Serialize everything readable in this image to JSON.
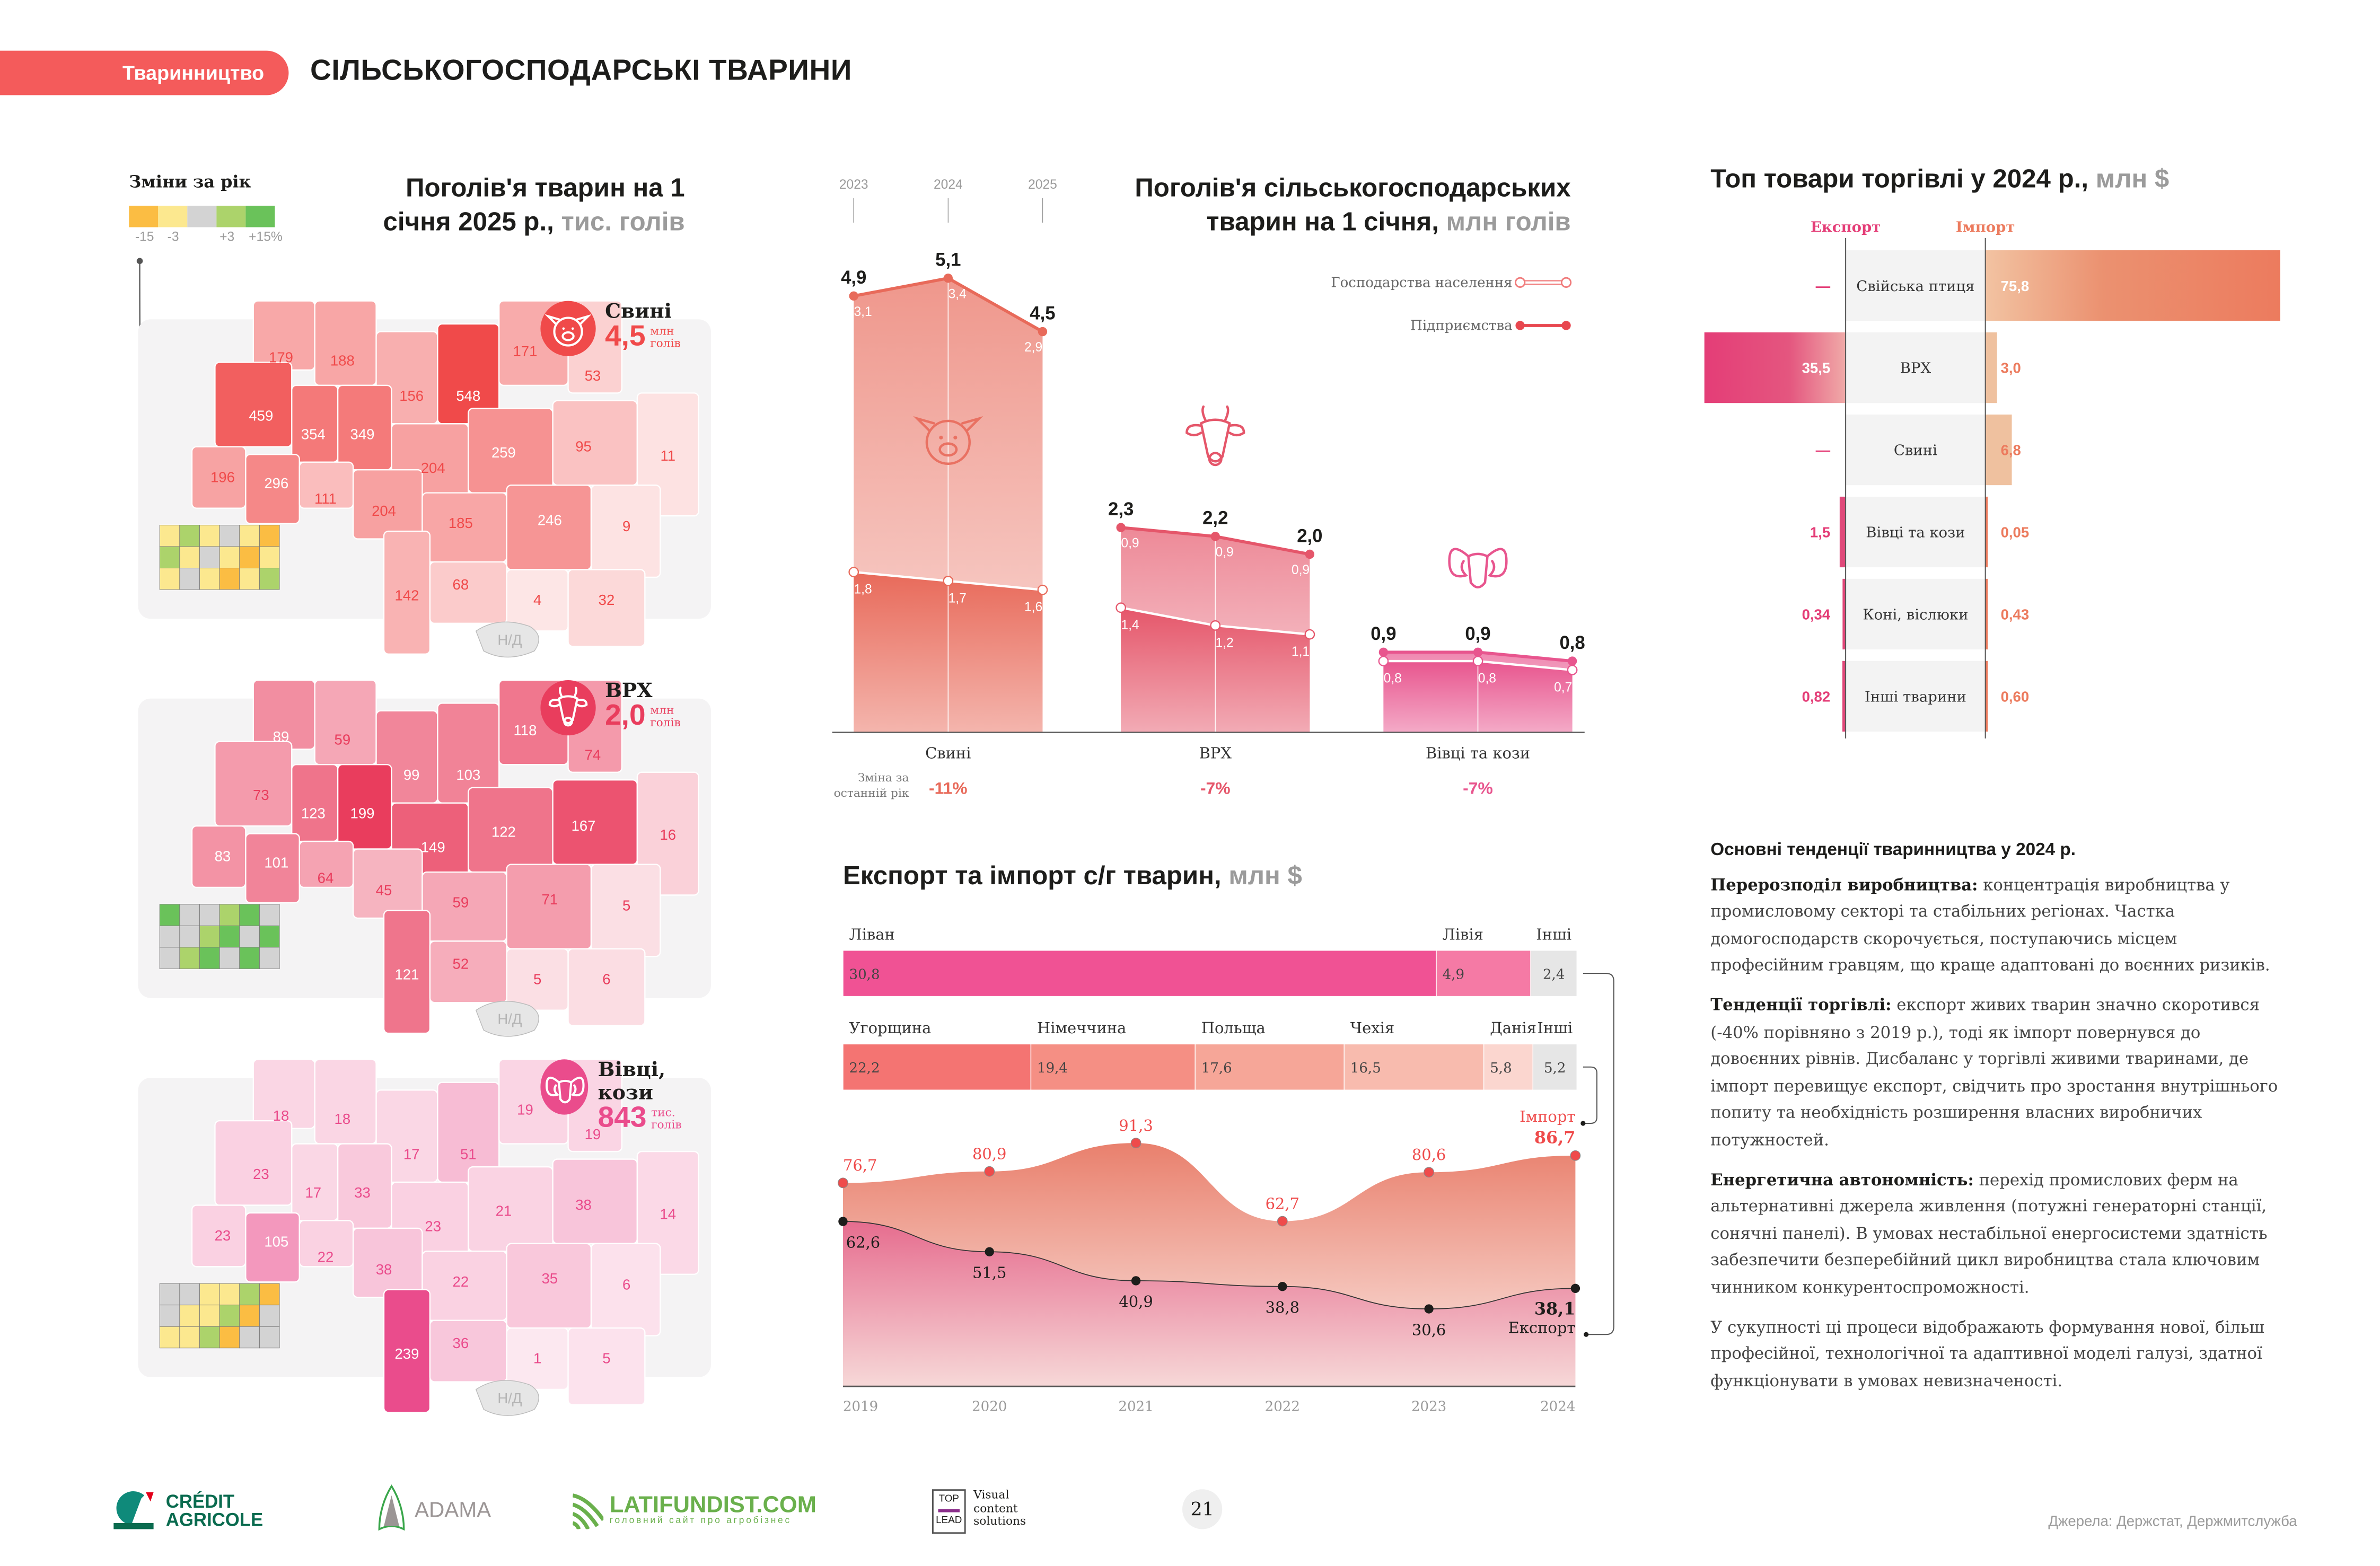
{
  "header": {
    "section_pill": "Тваринництво",
    "page_title": "СІЛЬСЬКОГОСПОДАРСЬКІ ТВАРИНИ",
    "accent_color": "#f45b5b"
  },
  "maps_block": {
    "title_main": "Поголів'я тварин на 1 січня 2025 р.,",
    "title_unit": "тис. голів",
    "change_legend": {
      "title": "Зміни за рік",
      "colors": [
        "#fbbd43",
        "#fce88f",
        "#d3d3d3",
        "#acd36b",
        "#6ac25a"
      ],
      "labels": [
        "-15",
        "-3",
        "+3",
        "+15%"
      ]
    },
    "no_data_label": "Н/Д",
    "maps": [
      {
        "name": "Свині",
        "icon": "pig-icon",
        "total": "4,5",
        "unit_line1": "млн",
        "unit_line2": "голів",
        "color": "#f04a4a",
        "regions": [
          "179",
          "188",
          "156",
          "548",
          "171",
          "53",
          "459",
          "354",
          "349",
          "204",
          "259",
          "95",
          "196",
          "296",
          "111",
          "204",
          "185",
          "246",
          "11",
          "9",
          "142",
          "68",
          "4",
          "32"
        ]
      },
      {
        "name": "ВРХ",
        "icon": "cow-icon",
        "total": "2,0",
        "unit_line1": "млн",
        "unit_line2": "голів",
        "color": "#e93d5d",
        "regions": [
          "89",
          "59",
          "99",
          "103",
          "118",
          "74",
          "73",
          "123",
          "199",
          "149",
          "122",
          "167",
          "83",
          "101",
          "64",
          "45",
          "59",
          "71",
          "16",
          "5",
          "121",
          "52",
          "5",
          "6"
        ]
      },
      {
        "name": "Вівці, кози",
        "icon": "ram-icon",
        "total": "843",
        "unit_line1": "тис.",
        "unit_line2": "голів",
        "color": "#ea4c8c",
        "regions": [
          "18",
          "18",
          "17",
          "51",
          "19",
          "19",
          "23",
          "17",
          "33",
          "23",
          "21",
          "38",
          "23",
          "105",
          "22",
          "38",
          "22",
          "35",
          "14",
          "6",
          "239",
          "36",
          "1",
          "5"
        ]
      }
    ]
  },
  "chart_data": [
    {
      "type": "area",
      "title": "Поголів'я сільськогосподарських тварин на 1 січня,",
      "title_unit": "млн голів",
      "years": [
        "2023",
        "2024",
        "2025"
      ],
      "legend": [
        {
          "label": "Господарства населення",
          "marker": "hollow"
        },
        {
          "label": "Підприємства",
          "marker": "filled"
        }
      ],
      "groups": [
        {
          "name": "Свині",
          "icon": "pig-icon",
          "color": "#e86a5a",
          "total": [
            4.9,
            5.1,
            4.5
          ],
          "total_labels": [
            "4,9",
            "5,1",
            "4,5"
          ],
          "enterprises": [
            "3,1",
            "3,4",
            "2,9"
          ],
          "households": [
            1.8,
            1.7,
            1.6
          ],
          "households_labels": [
            "1,8",
            "1,7",
            "1,6"
          ],
          "change": "-11%"
        },
        {
          "name": "ВРХ",
          "icon": "cow-icon",
          "color": "#e5566a",
          "total": [
            2.3,
            2.2,
            2.0
          ],
          "total_labels": [
            "2,3",
            "2,2",
            "2,0"
          ],
          "enterprises": [
            "0,9",
            "0,9",
            "0,9"
          ],
          "households": [
            1.4,
            1.2,
            1.1
          ],
          "households_labels": [
            "1,4",
            "1,2",
            "1,1"
          ],
          "change": "-7%"
        },
        {
          "name": "Вівці та кози",
          "icon": "ram-icon",
          "color": "#e8558e",
          "total": [
            0.9,
            0.9,
            0.8
          ],
          "total_labels": [
            "0,9",
            "0,9",
            "0,8"
          ],
          "enterprises": [],
          "households": [
            0.8,
            0.8,
            0.7
          ],
          "households_labels": [
            "0,8",
            "0,8",
            "0,7"
          ],
          "change": "-7%"
        }
      ],
      "change_label": "Зміна за останній рік",
      "ylim": [
        0,
        5.5
      ]
    },
    {
      "type": "bar",
      "title": "Топ товари торгівлі у 2024 р.,",
      "title_unit": "млн $",
      "export_label": "Експорт",
      "import_label": "Імпорт",
      "categories": [
        "Свійська птиця",
        "ВРХ",
        "Свині",
        "Вівці та кози",
        "Коні, віслюки",
        "Інші тварини"
      ],
      "series": [
        {
          "name": "Експорт",
          "values": [
            null,
            35.5,
            null,
            1.5,
            0.34,
            0.82
          ],
          "labels": [
            "—",
            "35,5",
            "—",
            "1,5",
            "0,34",
            "0,82"
          ],
          "color": "#e43d77"
        },
        {
          "name": "Імпорт",
          "values": [
            75.8,
            3.0,
            6.8,
            0.05,
            0.43,
            0.6
          ],
          "labels": [
            "75,8",
            "3,0",
            "6,8",
            "0,05",
            "0,43",
            "0,60"
          ],
          "color": "#ec7b5e"
        }
      ]
    },
    {
      "type": "bar",
      "title": "Експорт та імпорт с/г тварин,",
      "title_unit": "млн $",
      "stacked_rows": [
        {
          "name": "Експорт 2024",
          "segments": [
            {
              "label": "Ліван",
              "value": 30.8,
              "text": "30,8",
              "color": "#f05294"
            },
            {
              "label": "Лівія",
              "value": 4.9,
              "text": "4,9",
              "color": "#f57aa5"
            },
            {
              "label": "Інші",
              "value": 2.4,
              "text": "2,4",
              "color": "#e6e6e6"
            }
          ]
        },
        {
          "name": "Імпорт 2024",
          "segments": [
            {
              "label": "Угорщина",
              "value": 22.2,
              "text": "22,2",
              "color": "#f47472"
            },
            {
              "label": "Німеччина",
              "value": 19.4,
              "text": "19,4",
              "color": "#f58f84"
            },
            {
              "label": "Польща",
              "value": 17.6,
              "text": "17,6",
              "color": "#f6a698"
            },
            {
              "label": "Чехія",
              "value": 16.5,
              "text": "16,5",
              "color": "#f8bbae"
            },
            {
              "label": "Данія",
              "value": 5.8,
              "text": "5,8",
              "color": "#fbd6cf"
            },
            {
              "label": "Інші",
              "value": 5.2,
              "text": "5,2",
              "color": "#e6e6e6"
            }
          ]
        }
      ]
    },
    {
      "type": "line",
      "x": [
        "2019",
        "2020",
        "2021",
        "2022",
        "2023",
        "2024"
      ],
      "series": [
        {
          "name": "Імпорт",
          "values": [
            76.7,
            80.9,
            91.3,
            62.7,
            80.6,
            86.7
          ],
          "labels": [
            "76,7",
            "80,9",
            "91,3",
            "62,7",
            "80,6",
            "86,7"
          ],
          "color": "#ef4b4b"
        },
        {
          "name": "Експорт",
          "values": [
            62.6,
            51.5,
            40.9,
            38.8,
            30.6,
            38.1
          ],
          "labels": [
            "62,6",
            "51,5",
            "40,9",
            "38,8",
            "30,6",
            "38,1"
          ],
          "color": "#1d1d1b"
        }
      ],
      "ylim": [
        0,
        100
      ]
    }
  ],
  "trends": {
    "title": "Основні тенденції тваринництва у 2024 р.",
    "paragraphs": [
      {
        "lead": "Перерозподіл виробництва:",
        "text": " концентрація виробництва у промисловому секторі та стабільних регіонах. Частка домогосподарств скорочується, поступаючись місцем професійним гравцям, що краще адаптовані до воєнних ризиків."
      },
      {
        "lead": "Тенденції торгівлі:",
        "text": " експорт живих тварин значно скоротився (-40% порівняно з 2019 р.), тоді як імпорт повернувся до довоєнних рівнів. Дисбаланс у торгівлі живими тваринами, де імпорт перевищує експорт, свідчить про зростання внутрішнього попиту та необхідність розширення власних виробничих потужностей."
      },
      {
        "lead": "Енергетична автономність:",
        "text": " перехід промислових ферм на альтернативні джерела живлення (потужні генераторні станції, сонячні панелі). В умовах нестабільної енергосистеми здатність забезпечити безперебійний цикл виробництва стала ключовим чинником конкурентоспроможності."
      },
      {
        "lead": "",
        "text": "У сукупності ці процеси відображають формування нової, більш професійної, технологічної та адаптивної моделі галузі, здатної функціонувати в умовах невизначеності."
      }
    ]
  },
  "footer": {
    "logos": [
      "CRÉDIT AGRICOLE",
      "ADAMA",
      "LATIFUNDIST.COM",
      "головний сайт про агробізнес",
      "TOP LEAD",
      "Visual content solutions"
    ],
    "credit_line1": "CRÉDIT",
    "credit_line2": "AGRICOLE",
    "adama": "ADAMA",
    "latifundist": "LATIFUNDIST.COM",
    "latifundist_sub": "головний сайт про агробізнес",
    "toplead_top": "TOP",
    "toplead_bottom": "LEAD",
    "toplead_text": "Visual content solutions",
    "page_number": "21",
    "source": "Джерела: Держстат, Держмитслужба"
  }
}
